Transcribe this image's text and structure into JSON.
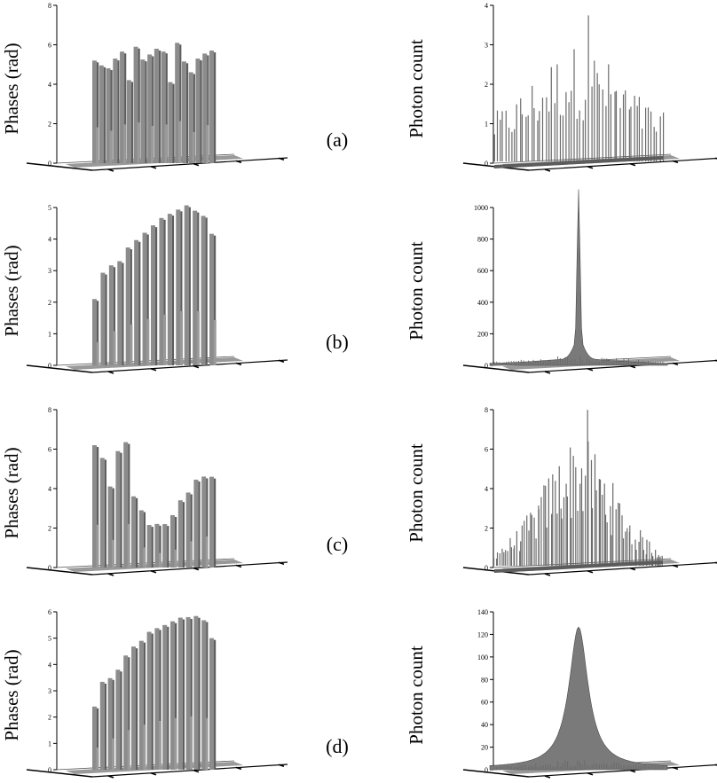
{
  "figure": {
    "rows": [
      {
        "panel_label": "(a)",
        "left": {
          "ylabel": "Phases (rad)",
          "ytick_labels": [
            "0",
            "2",
            "4",
            "6",
            "8"
          ]
        },
        "right": {
          "ylabel": "Photon count",
          "ytick_labels": [
            "0",
            "1",
            "2",
            "3",
            "4"
          ]
        }
      },
      {
        "panel_label": "(b)",
        "left": {
          "ylabel": "Phases (rad)",
          "ytick_labels": [
            "0",
            "1",
            "2",
            "3",
            "4",
            "5"
          ]
        },
        "right": {
          "ylabel": "Photon count",
          "ytick_labels": [
            "0",
            "200",
            "400",
            "600",
            "800",
            "1000"
          ]
        }
      },
      {
        "panel_label": "(c)",
        "left": {
          "ylabel": "Phases (rad)",
          "ytick_labels": [
            "0",
            "2",
            "4",
            "6",
            "8"
          ]
        },
        "right": {
          "ylabel": "Photon count",
          "ytick_labels": [
            "0",
            "2",
            "4",
            "6",
            "8"
          ]
        }
      },
      {
        "panel_label": "(d)",
        "left": {
          "ylabel": "Phases (rad)",
          "ytick_labels": [
            "0",
            "1",
            "2",
            "3",
            "4",
            "5",
            "6"
          ]
        },
        "right": {
          "ylabel": "Photon count",
          "ytick_labels": [
            "0",
            "20",
            "40",
            "60",
            "80",
            "100",
            "120",
            "140"
          ]
        }
      }
    ],
    "bar_color": "#8c8c8c",
    "bar_shadow_color": "#5e5e5e",
    "surface_color": "#7a7a7a"
  },
  "chart_data": [
    {
      "type": "bar",
      "panel": "(a) phases",
      "ylabel": "Phases (rad)",
      "ylim": [
        0,
        8
      ],
      "values": [
        5.2,
        4.9,
        4.7,
        5.3,
        5.6,
        4.1,
        5.9,
        5.2,
        5.4,
        5.8,
        5.6,
        4.0,
        6.1,
        5.1,
        4.5,
        5.3,
        5.5,
        5.6
      ]
    },
    {
      "type": "area",
      "panel": "(a) photon count",
      "ylabel": "Photon count",
      "ylim": [
        0,
        4
      ],
      "profile": "noisy",
      "max_value": 3.7
    },
    {
      "type": "bar",
      "panel": "(b) phases",
      "ylabel": "Phases (rad)",
      "ylim": [
        0,
        5
      ],
      "values": [
        2.1,
        2.9,
        3.1,
        3.3,
        3.7,
        3.9,
        4.2,
        4.4,
        4.6,
        4.8,
        4.9,
        5.0,
        4.9,
        4.7,
        4.1
      ]
    },
    {
      "type": "area",
      "panel": "(b) photon count",
      "ylabel": "Photon count",
      "ylim": [
        0,
        1000
      ],
      "profile": "single_spike",
      "max_value": 960
    },
    {
      "type": "bar",
      "panel": "(c) phases",
      "ylabel": "Phases (rad)",
      "ylim": [
        0,
        8
      ],
      "values": [
        6.2,
        5.5,
        4.0,
        5.9,
        6.3,
        3.5,
        2.9,
        2.1,
        2.1,
        2.2,
        2.6,
        3.3,
        3.8,
        4.4,
        4.5,
        4.6
      ]
    },
    {
      "type": "area",
      "panel": "(c) photon count",
      "ylabel": "Photon count",
      "ylim": [
        0,
        8
      ],
      "profile": "noisy_peak",
      "max_value": 7.9
    },
    {
      "type": "bar",
      "panel": "(d) phases",
      "ylabel": "Phases (rad)",
      "ylim": [
        0,
        6
      ],
      "values": [
        2.4,
        3.3,
        3.4,
        3.8,
        4.3,
        4.6,
        4.9,
        5.2,
        5.3,
        5.5,
        5.6,
        5.7,
        5.8,
        5.8,
        5.6,
        5.0
      ]
    },
    {
      "type": "area",
      "panel": "(d) photon count",
      "ylabel": "Photon count",
      "ylim": [
        0,
        140
      ],
      "profile": "smooth_peak",
      "max_value": 125
    }
  ]
}
